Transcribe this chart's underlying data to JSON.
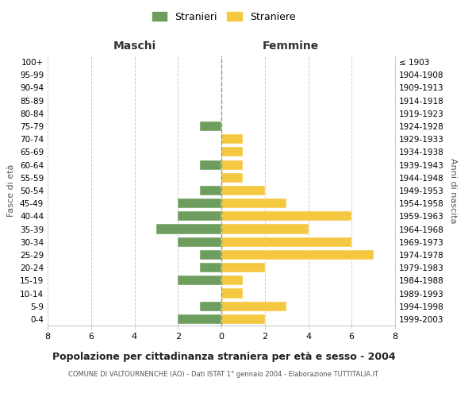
{
  "age_groups": [
    "0-4",
    "5-9",
    "10-14",
    "15-19",
    "20-24",
    "25-29",
    "30-34",
    "35-39",
    "40-44",
    "45-49",
    "50-54",
    "55-59",
    "60-64",
    "65-69",
    "70-74",
    "75-79",
    "80-84",
    "85-89",
    "90-94",
    "95-99",
    "100+"
  ],
  "birth_years": [
    "1999-2003",
    "1994-1998",
    "1989-1993",
    "1984-1988",
    "1979-1983",
    "1974-1978",
    "1969-1973",
    "1964-1968",
    "1959-1963",
    "1954-1958",
    "1949-1953",
    "1944-1948",
    "1939-1943",
    "1934-1938",
    "1929-1933",
    "1924-1928",
    "1919-1923",
    "1914-1918",
    "1909-1913",
    "1904-1908",
    "≤ 1903"
  ],
  "maschi": [
    2,
    1,
    0,
    2,
    1,
    1,
    2,
    3,
    2,
    2,
    1,
    0,
    1,
    0,
    0,
    1,
    0,
    0,
    0,
    0,
    0
  ],
  "femmine": [
    2,
    3,
    1,
    1,
    2,
    7,
    6,
    4,
    6,
    3,
    2,
    1,
    1,
    1,
    1,
    0,
    0,
    0,
    0,
    0,
    0
  ],
  "color_maschi": "#6e9e5e",
  "color_femmine": "#f5c842",
  "title": "Popolazione per cittadinanza straniera per età e sesso - 2004",
  "subtitle": "COMUNE DI VALTOURNENCHE (AO) - Dati ISTAT 1° gennaio 2004 - Elaborazione TUTTITALIA.IT",
  "xlabel_left": "Maschi",
  "xlabel_right": "Femmine",
  "ylabel_left": "Fasce di età",
  "ylabel_right": "Anni di nascita",
  "legend_maschi": "Stranieri",
  "legend_femmine": "Straniere",
  "xlim": 8,
  "background_color": "#ffffff",
  "grid_color": "#cccccc"
}
